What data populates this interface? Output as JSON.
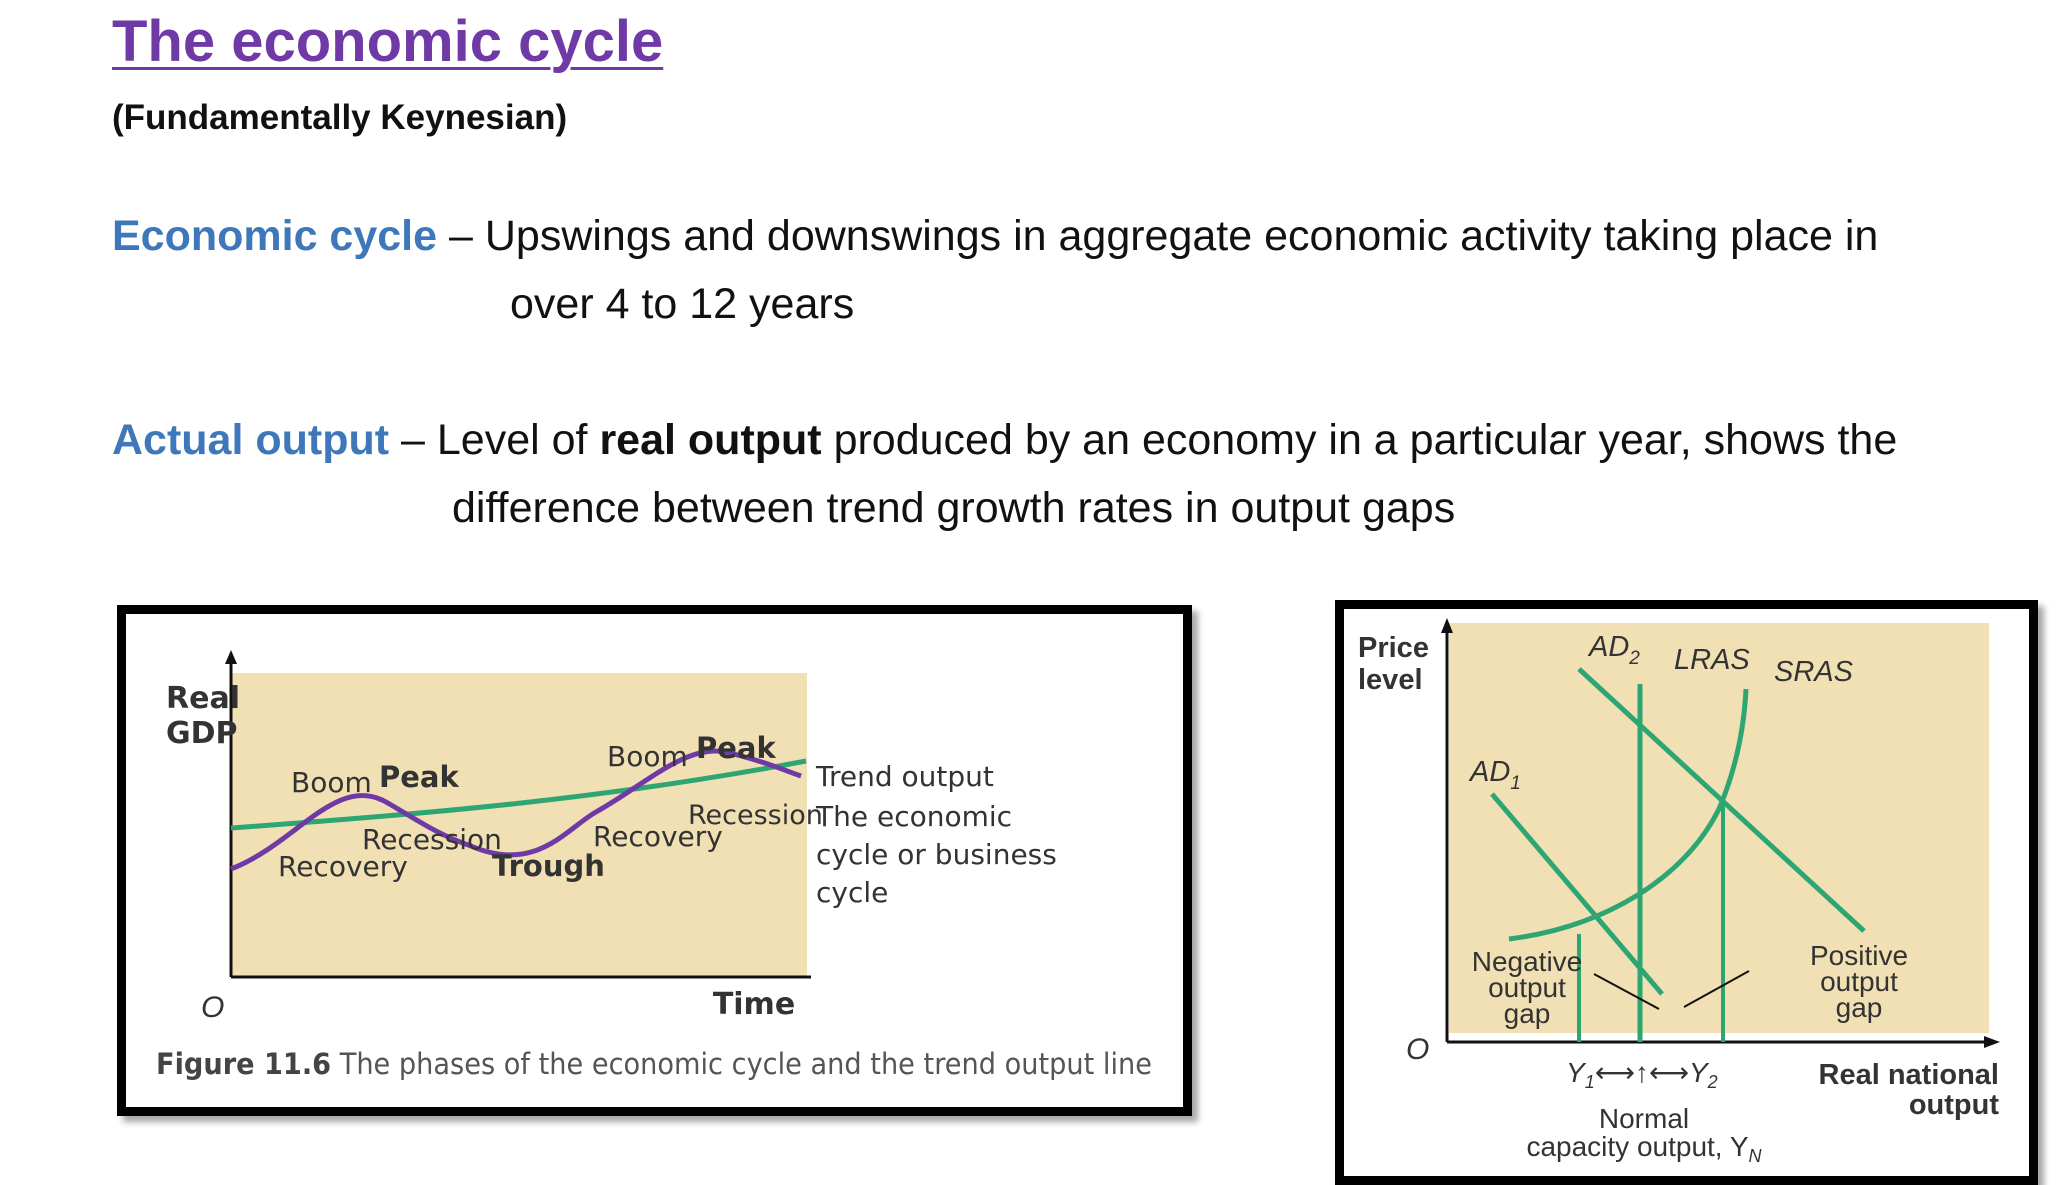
{
  "header": {
    "title": "The economic cycle",
    "subtitle": "(Fundamentally Keynesian)"
  },
  "definitions": {
    "economic_cycle": {
      "term": "Economic cycle",
      "dash": " – ",
      "line1": "Upswings and downswings in aggregate economic activity taking place in",
      "line2": "over 4 to 12 years"
    },
    "actual_output": {
      "term": "Actual output",
      "dash": " – ",
      "line1_pre": "Level of ",
      "line1_bold": "real output",
      "line1_post": " produced by an economy in a particular year, shows the",
      "line2": "difference between trend growth rates in output gaps"
    }
  },
  "figure_cycle": {
    "y_axis_label_1": "Real",
    "y_axis_label_2": "GDP",
    "origin": "O",
    "x_axis_label": "Time",
    "labels": {
      "boom1": "Boom",
      "peak1": "Peak",
      "recession1": "Recession",
      "recovery1": "Recovery",
      "trough": "Trough",
      "recovery2": "Recovery",
      "boom2": "Boom",
      "peak2": "Peak",
      "recession2": "Recession"
    },
    "legend_trend": "Trend output",
    "legend_cycle_1": "The economic",
    "legend_cycle_2": "cycle or business",
    "legend_cycle_3": "cycle",
    "caption_number": "Figure 11.6",
    "caption_text": " The phases of the economic cycle and the trend output line",
    "colors": {
      "background": "#f1e0b3",
      "trend": "#2ea673",
      "cycle": "#6f3aa6"
    }
  },
  "figure_gap": {
    "y_axis_label_1": "Price",
    "y_axis_label_2": "level",
    "origin": "O",
    "curve_labels": {
      "ad2_base": "AD",
      "ad2_sub": "2",
      "lras": "LRAS",
      "sras": "SRAS",
      "ad1_base": "AD",
      "ad1_sub": "1"
    },
    "negative_gap_1": "Negative",
    "negative_gap_2": "output",
    "negative_gap_3": "gap",
    "positive_gap_1": "Positive",
    "positive_gap_2": "output",
    "positive_gap_3": "gap",
    "x_ticks": {
      "y1_base": "Y",
      "y1_sub": "1",
      "arrows": "⟷↑⟷",
      "y2_base": "Y",
      "y2_sub": "2"
    },
    "x_axis_label_1": "Real national",
    "x_axis_label_2": "output",
    "normal_1": "Normal",
    "normal_2_base": "capacity output, Y",
    "normal_2_sub": "N",
    "colors": {
      "background": "#f1e0b3",
      "curve": "#2ea673"
    }
  }
}
